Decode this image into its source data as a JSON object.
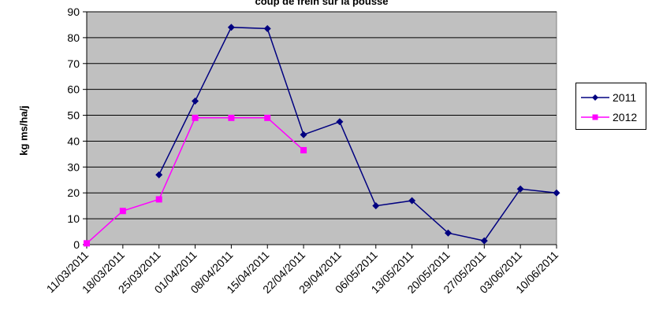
{
  "chart_data": {
    "type": "line",
    "title": "coup de frein sur la pousse",
    "xlabel": "",
    "ylabel": "kg ms/ha/j",
    "ylim": [
      0,
      90
    ],
    "yticks": [
      0,
      10,
      20,
      30,
      40,
      50,
      60,
      70,
      80,
      90
    ],
    "categories": [
      "11/03/2011",
      "18/03/2011",
      "25/03/2011",
      "01/04/2011",
      "08/04/2011",
      "15/04/2011",
      "22/04/2011",
      "29/04/2011",
      "06/05/2011",
      "13/05/2011",
      "20/05/2011",
      "27/05/2011",
      "03/06/2011",
      "10/06/2011"
    ],
    "grid": true,
    "plot_background": "#c0c0c0",
    "legend_position": "right",
    "series": [
      {
        "name": "2011",
        "color": "#000080",
        "marker": "diamond",
        "values": [
          null,
          null,
          27,
          55.5,
          84,
          83.5,
          42.5,
          47.5,
          15,
          17,
          4.5,
          1.5,
          21.5,
          20
        ]
      },
      {
        "name": "2012",
        "color": "#ff00ff",
        "marker": "square",
        "values": [
          0.5,
          13,
          17.5,
          49,
          49,
          49,
          36.5,
          null,
          null,
          null,
          null,
          null,
          null,
          null
        ]
      }
    ]
  }
}
